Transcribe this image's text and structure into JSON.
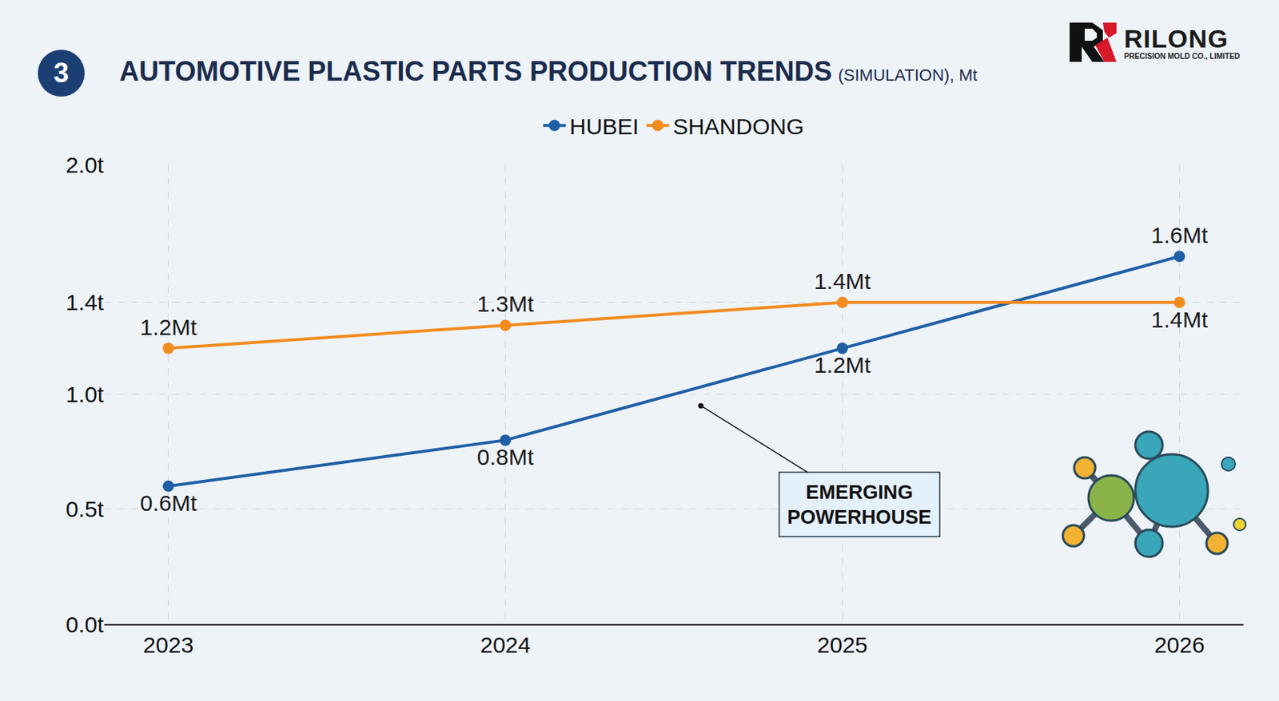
{
  "badge": "3",
  "logo": {
    "name": "RILONG",
    "tagline": "PRECISION MOLD CO., LIMITED"
  },
  "chart_data": {
    "type": "line",
    "title": "AUTOMOTIVE PLASTIC PARTS PRODUCTION TRENDS",
    "subtitle": "(SIMULATION), Mt",
    "categories": [
      "2023",
      "2024",
      "2025",
      "2026"
    ],
    "series": [
      {
        "name": "HUBEI",
        "color": "#1f5fa6",
        "values": [
          0.6,
          0.8,
          1.2,
          1.6
        ],
        "value_labels": [
          "0.6Mt",
          "0.8Mt",
          "1.2Mt",
          "1.6Mt"
        ]
      },
      {
        "name": "SHANDONG",
        "color": "#f28c1e",
        "values": [
          1.2,
          1.3,
          1.4,
          1.4
        ],
        "value_labels": [
          "1.2Mt",
          "1.3Mt",
          "1.4Mt",
          "1.4Mt"
        ]
      }
    ],
    "ylim": [
      0,
      2.0
    ],
    "yticks": [
      {
        "value": 0,
        "label": "0.0t"
      },
      {
        "value": 0.5,
        "label": "0.5t"
      },
      {
        "value": 1.0,
        "label": "1.0t"
      },
      {
        "value": 1.4,
        "label": "1.4t"
      },
      {
        "value": 2.0,
        "label": "2.0t"
      }
    ],
    "grid": true,
    "legend": "top",
    "data_labels": true,
    "marker": "circle",
    "annotations": [
      {
        "text": "EMERGING POWERHOUSE"
      }
    ]
  }
}
